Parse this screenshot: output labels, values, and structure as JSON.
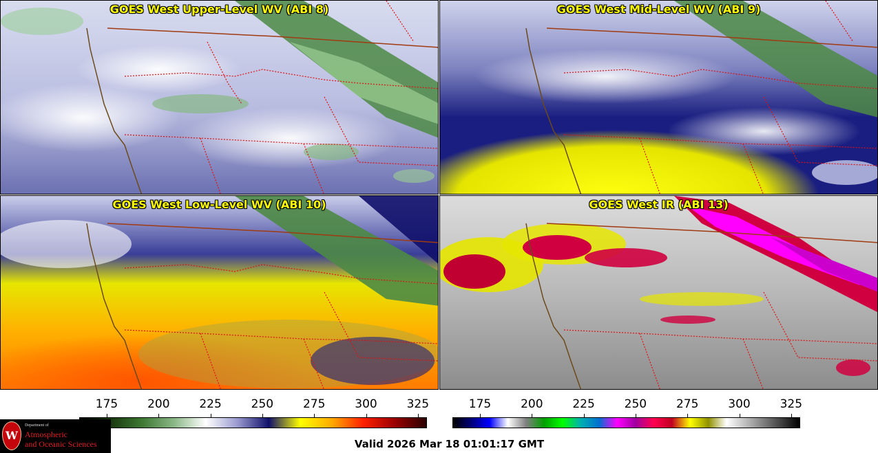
{
  "panels": [
    {
      "title": "GOES West Upper-Level WV (ABI 8)",
      "theme": "upper"
    },
    {
      "title": "GOES West Mid-Level WV (ABI 9)",
      "theme": "mid"
    },
    {
      "title": "GOES West Low-Level WV (ABI 10)",
      "theme": "low"
    },
    {
      "title": "GOES West IR (ABI 13)",
      "theme": "ir"
    }
  ],
  "colorbars": {
    "wv": {
      "ticks": [
        "175",
        "200",
        "225",
        "250",
        "275",
        "300",
        "325"
      ],
      "colors": [
        "#000000",
        "#1a3a10",
        "#3f7a35",
        "#8cb888",
        "#ffffff",
        "#9a9ad0",
        "#10106a",
        "#ffff00",
        "#ffaa00",
        "#ff2000",
        "#9a0000",
        "#2a0000"
      ]
    },
    "ir": {
      "ticks": [
        "175",
        "200",
        "225",
        "250",
        "275",
        "300",
        "325"
      ],
      "colors": [
        "#000000",
        "#00007a",
        "#0000ff",
        "#ffffff",
        "#808080",
        "#00a000",
        "#00ff00",
        "#00b0b0",
        "#0070d0",
        "#ff00ff",
        "#a000a0",
        "#ff0050",
        "#c00020",
        "#ffff00",
        "#909000",
        "#ffffff",
        "#c0c0c0",
        "#808080",
        "#404040",
        "#000000"
      ]
    }
  },
  "logo": {
    "department": "Department of",
    "line1": "Atmospheric",
    "line2": "and Oceanic Sciences"
  },
  "valid_time": "Valid 2026 Mar 18 01:01:17 GMT"
}
